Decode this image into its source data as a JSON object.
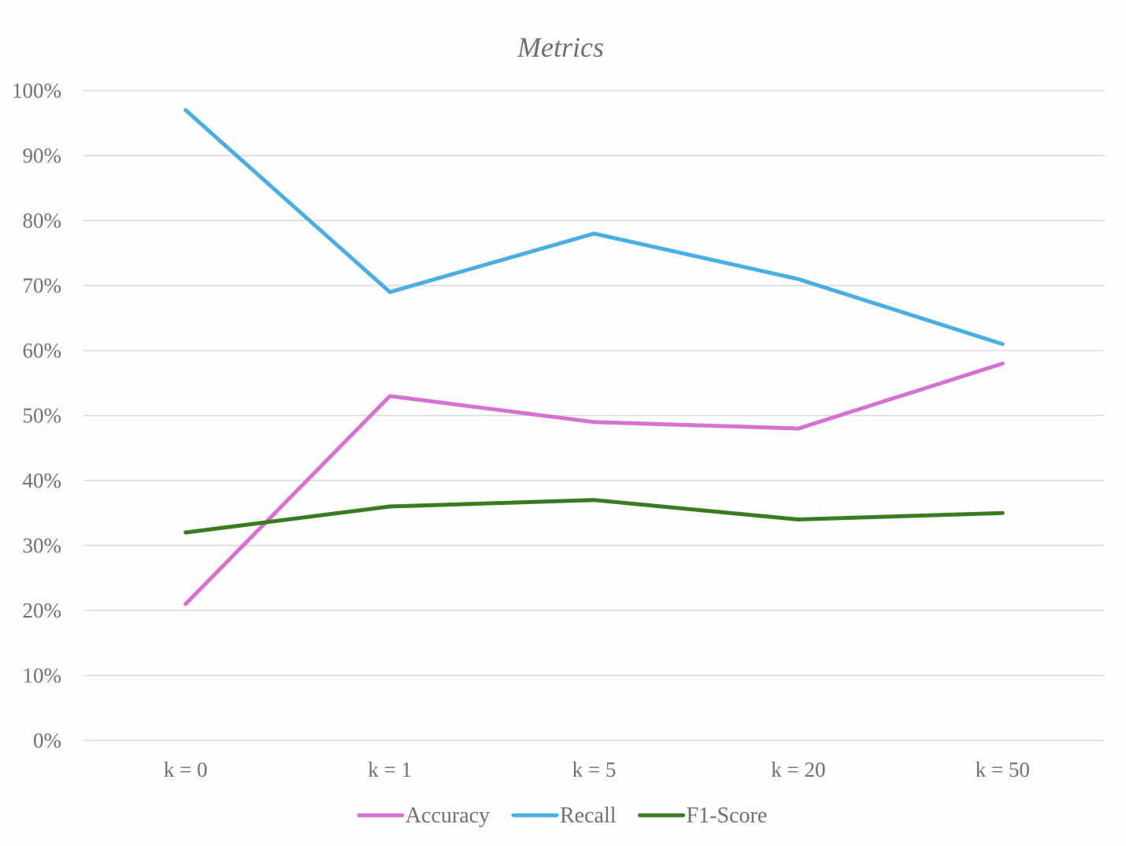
{
  "chart_data": {
    "type": "line",
    "title": "Metrics",
    "xlabel": "",
    "ylabel": "",
    "categories": [
      "k = 0",
      "k = 1",
      "k = 5",
      "k = 20",
      "k = 50"
    ],
    "ylim": [
      0,
      100
    ],
    "y_ticks": [
      0,
      10,
      20,
      30,
      40,
      50,
      60,
      70,
      80,
      90,
      100
    ],
    "y_tick_labels": [
      "0%",
      "10%",
      "20%",
      "30%",
      "40%",
      "50%",
      "60%",
      "70%",
      "80%",
      "90%",
      "100%"
    ],
    "grid": true,
    "legend_position": "bottom",
    "series": [
      {
        "name": "Accuracy",
        "color": "#d572d0",
        "values": [
          21,
          53,
          49,
          48,
          58
        ]
      },
      {
        "name": "Recall",
        "color": "#4aaee0",
        "values": [
          97,
          69,
          78,
          71,
          61
        ]
      },
      {
        "name": "F1-Score",
        "color": "#3a7a21",
        "values": [
          32,
          36,
          37,
          34,
          35
        ]
      }
    ]
  }
}
